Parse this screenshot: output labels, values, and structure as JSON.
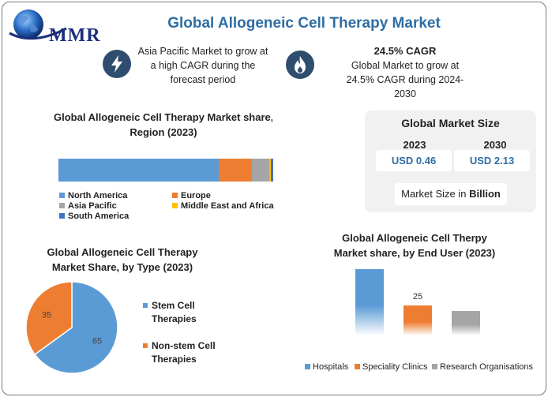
{
  "header": {
    "logo_text": "MMR",
    "title": "Global Allogeneic Cell Therapy Market"
  },
  "highlights": {
    "left": {
      "icon": "lightning-icon",
      "text_lines": [
        "Asia Pacific Market to grow at",
        "a high CAGR during the",
        "forecast period"
      ]
    },
    "right": {
      "icon": "flame-icon",
      "heading": "24.5% CAGR",
      "text_lines": [
        "Global Market to grow at",
        "24.5% CAGR during 2024-",
        "2030"
      ]
    }
  },
  "market_size": {
    "title": "Global Market Size",
    "years": [
      {
        "year": "2023",
        "value": "USD 0.46"
      },
      {
        "year": "2030",
        "value": "USD 2.13"
      }
    ],
    "note_prefix": "Market Size in ",
    "note_unit": "Billion"
  },
  "chart_data": [
    {
      "type": "bar",
      "orientation": "horizontal-stacked",
      "title_lines": [
        "Global Allogeneic Cell Therapy Market share, b",
        "Region (2023)"
      ],
      "series": [
        {
          "name": "North America",
          "value": 74.5,
          "color": "#5b9bd5"
        },
        {
          "name": "Europe",
          "value": 15.5,
          "color": "#ed7d31"
        },
        {
          "name": "Asia Pacific",
          "value": 8,
          "color": "#a5a5a5"
        },
        {
          "name": "Middle East and Africa",
          "value": 1,
          "color": "#ffc000"
        },
        {
          "name": "South America",
          "value": 1,
          "color": "#4472c4"
        }
      ],
      "legend": "bottom"
    },
    {
      "type": "pie",
      "title_lines": [
        "Global Allogeneic Cell Therapy",
        "Market Share, by Type (2023)"
      ],
      "slices": [
        {
          "name": "Stem Cell Therapies",
          "label_lines": [
            "Stem Cell",
            "Therapies"
          ],
          "value": 65,
          "color": "#5b9bd5"
        },
        {
          "name": "Non-stem Cell Therapies",
          "label_lines": [
            "Non-stem Cell",
            "Therapies"
          ],
          "value": 35,
          "color": "#ed7d31"
        }
      ],
      "legend": "right"
    },
    {
      "type": "bar",
      "title_lines": [
        "Global Allogeneic Cell Therpy",
        "Market share, by End User (2023)"
      ],
      "categories": [
        "Hospitals",
        "Speciality Clinics",
        "Research Organisations"
      ],
      "values": [
        55,
        25,
        20
      ],
      "data_labels": [
        "",
        "25",
        ""
      ],
      "colors": [
        "#5b9bd5",
        "#ed7d31",
        "#a5a5a5"
      ],
      "ylim": [
        0,
        60
      ],
      "legend": "bottom"
    }
  ]
}
